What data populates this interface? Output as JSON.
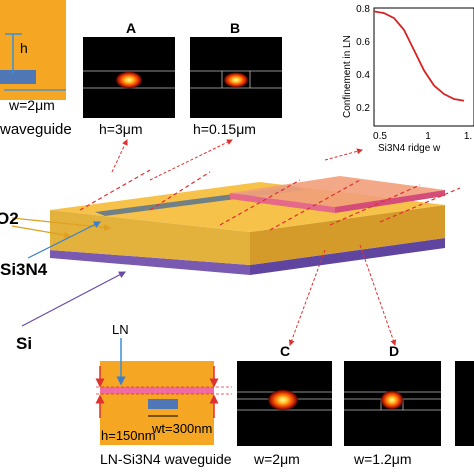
{
  "panels": {
    "A": {
      "letter": "A",
      "caption": "h=3μm"
    },
    "B": {
      "letter": "B",
      "caption": "h=0.15μm"
    },
    "C": {
      "letter": "C",
      "caption": "w=2μm"
    },
    "D": {
      "letter": "D",
      "caption": "w=1.2μm"
    }
  },
  "top_inset": {
    "h_label": "h",
    "w_label": "w=2μm",
    "caption": "waveguide"
  },
  "bottom_inset": {
    "ln_label": "LN",
    "h_label": "h=150nm",
    "w_label": "wt=300nm",
    "caption": "LN-Si3N4 waveguide"
  },
  "device_labels": {
    "sio2": "O2",
    "si3n4": "Si3N4",
    "si": "Si"
  },
  "chart": {
    "ylabel": "Confinement in LN",
    "xlabel": "Si3N4 ridge w",
    "y_ticks": [
      "0.8",
      "0.6",
      "0.4",
      "0.2"
    ],
    "x_ticks": [
      "0.5",
      "1",
      "1."
    ]
  },
  "chart_data": {
    "type": "line",
    "ylabel": "Confinement in LN",
    "xlabel": "Si3N4 ridge w",
    "ylim": [
      0.1,
      0.8
    ],
    "x": [
      0.4,
      0.5,
      0.6,
      0.7,
      0.8,
      0.9,
      1.0,
      1.1,
      1.2,
      1.3
    ],
    "y": [
      0.78,
      0.77,
      0.74,
      0.67,
      0.55,
      0.43,
      0.34,
      0.29,
      0.26,
      0.25
    ],
    "series_color": "#d62222"
  },
  "colors": {
    "inset_bg": "#f5a623",
    "waveguide": "#4f77b6",
    "ln_film": "#f06aa4",
    "arrow_red": "#e03030",
    "mode_panel_bg": "#000000"
  }
}
